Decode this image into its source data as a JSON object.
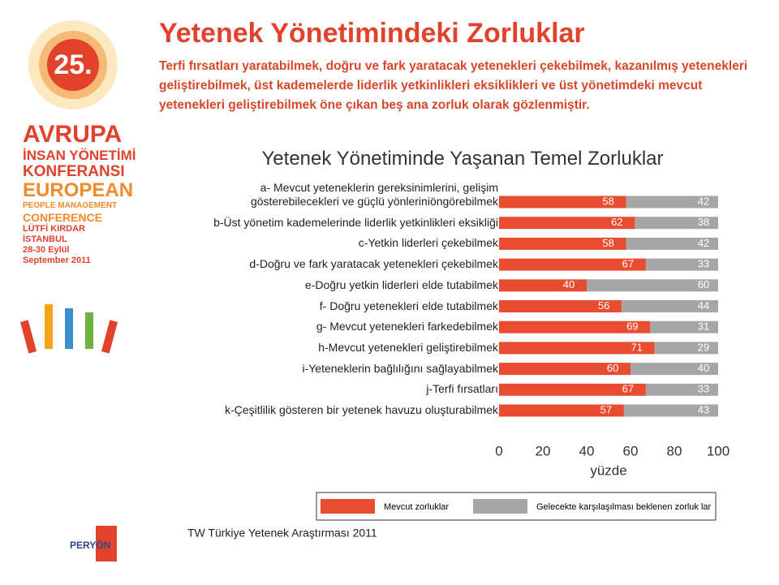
{
  "sidebar": {
    "badge": "25.",
    "lines": [
      "AVRUPA",
      "İNSAN YÖNETİMİ",
      "KONFERANSI",
      "EUROPEAN",
      "PEOPLE MANAGEMENT",
      "CONFERENCE",
      "LÜTFİ KIRDAR",
      "İSTANBUL",
      "28-30 Eylül",
      "September 2011"
    ]
  },
  "header": {
    "title": "Yetenek Yönetimindeki Zorluklar",
    "subtitle": "Terfi fırsatları yaratabilmek, doğru ve fark yaratacak yetenekleri çekebilmek, kazanılmış yetenekleri geliştirebilmek, üst kademelerde liderlik yetkinlikleri eksiklikleri ve üst yönetimdeki mevcut yetenekleri geliştirebilmek öne çıkan beş ana zorluk olarak gözlenmiştir."
  },
  "chart_data": {
    "type": "stacked-bar-horizontal",
    "title": "Yetenek Yönetiminde Yaşanan Temel Zorluklar",
    "categories": [
      "a- Mevcut yeteneklerin gereksinimlerini, gelişim\ngösterebilecekleri ve güçlü yönleriniöngörebilmek",
      "b-Üst yönetim kademelerinde liderlik yetkinlikleri eksikliği",
      "c-Yetkin liderleri çekebilmek",
      "d-Doğru ve fark yaratacak yetenekleri çekebilmek",
      "e-Doğru yetkin liderleri elde tutabilmek",
      "f- Doğru yetenekleri elde tutabilmek",
      "g- Mevcut yetenekleri farkedebilmek",
      "h-Mevcut yetenekleri geliştirebilmek",
      "i-Yeteneklerin bağlılığını sağlayabilmek",
      "j-Terfi fırsatları",
      "k-Çeşitlilik gösteren bir yetenek havuzu oluşturabilmek"
    ],
    "series": [
      {
        "name": "Mevcut zorluklar",
        "color": "#e84c31",
        "values": [
          58,
          62,
          58,
          67,
          40,
          56,
          69,
          71,
          60,
          67,
          57
        ]
      },
      {
        "name": "Gelecekte karşılaşılması beklenen zorluk lar",
        "color": "#a6a6a6",
        "values": [
          42,
          38,
          42,
          33,
          60,
          44,
          31,
          29,
          40,
          33,
          43
        ]
      }
    ],
    "xlim": [
      0,
      100
    ],
    "xticks": [
      0,
      20,
      40,
      60,
      80,
      100
    ],
    "xlabel": "yüzde"
  },
  "footer": {
    "source": "TW Türkiye Yetenek Araştırması 2011",
    "logo": "PERYÖN"
  }
}
